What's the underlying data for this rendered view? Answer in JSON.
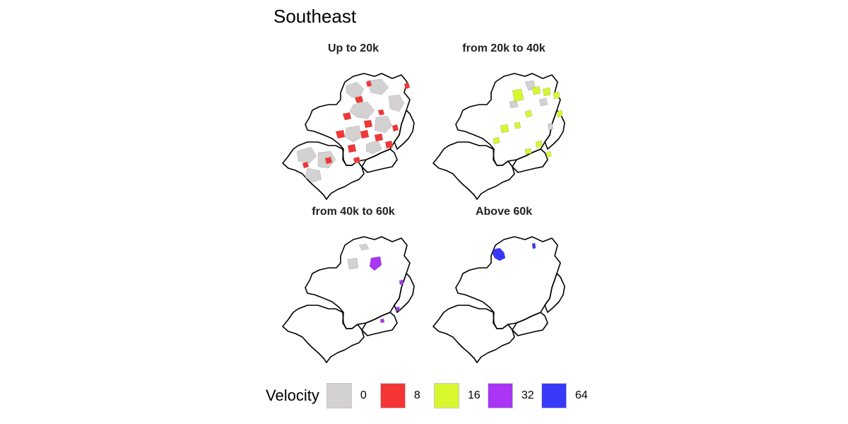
{
  "title": "Southeast",
  "legend": {
    "title": "Velocity",
    "items": [
      {
        "label": "0",
        "color": "#d3d1d1"
      },
      {
        "label": "8",
        "color": "#f33535"
      },
      {
        "label": "16",
        "color": "#d8f72e"
      },
      {
        "label": "32",
        "color": "#aa35f5"
      },
      {
        "label": "64",
        "color": "#3838f8"
      }
    ]
  },
  "panels": [
    {
      "title": "Up to 20k",
      "highlight": "many-small-red-and-gray"
    },
    {
      "title": "from 20k to 40k",
      "highlight": "yellow-green-and-gray"
    },
    {
      "title": "from 40k to 60k",
      "highlight": "purple-and-gray"
    },
    {
      "title": "Above 60k",
      "highlight": "blue"
    }
  ]
}
